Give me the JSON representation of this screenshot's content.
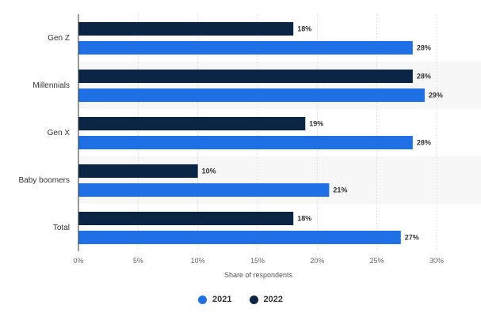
{
  "chart_data": {
    "type": "bar",
    "orientation": "horizontal",
    "categories": [
      "Gen Z",
      "Millennials",
      "Gen X",
      "Baby boomers",
      "Total"
    ],
    "series": [
      {
        "name": "2022",
        "values": [
          18,
          28,
          19,
          10,
          18
        ],
        "color": "#0b2545"
      },
      {
        "name": "2021",
        "values": [
          28,
          29,
          28,
          21,
          27
        ],
        "color": "#1f6fe5"
      }
    ],
    "xlabel": "Share of respondents",
    "xlim": [
      0,
      30
    ],
    "xticks": [
      "0%",
      "5%",
      "10%",
      "15%",
      "20%",
      "25%",
      "30%"
    ],
    "value_suffix": "%",
    "grid": true,
    "legend_placement": "bottom-center"
  },
  "legend": [
    {
      "label": "2021",
      "color": "#1f6fe5"
    },
    {
      "label": "2022",
      "color": "#0b2545"
    }
  ]
}
